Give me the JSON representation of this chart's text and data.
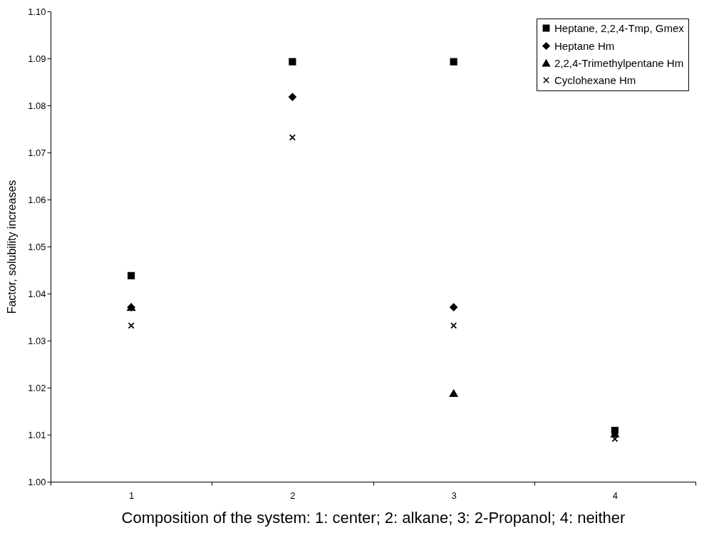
{
  "chart_data": {
    "type": "scatter",
    "xlabel": "Composition of the system: 1: center; 2: alkane; 3: 2-Propanol; 4: neither",
    "ylabel": "Factor, solubility increases",
    "categories": [
      "1",
      "2",
      "3",
      "4"
    ],
    "ylim": [
      1.0,
      1.1
    ],
    "yticks": [
      {
        "value": 1.0,
        "label": "1.00"
      },
      {
        "value": 1.01,
        "label": "1.01"
      },
      {
        "value": 1.02,
        "label": "1.02"
      },
      {
        "value": 1.03,
        "label": "1.03"
      },
      {
        "value": 1.04,
        "label": "1.04"
      },
      {
        "value": 1.05,
        "label": "1.05"
      },
      {
        "value": 1.06,
        "label": "1.06"
      },
      {
        "value": 1.07,
        "label": "1.07"
      },
      {
        "value": 1.08,
        "label": "1.08"
      },
      {
        "value": 1.09,
        "label": "1.09"
      },
      {
        "value": 1.1,
        "label": "1.10"
      }
    ],
    "grid": false,
    "legend": "top right",
    "series": [
      {
        "name": "Heptane, 2,2,4-Tmp, Gmex",
        "color": "#000000",
        "marker": "square",
        "values": [
          1.0438,
          1.0893,
          1.0893,
          1.0109
        ]
      },
      {
        "name": "Heptane Hm",
        "color": "#000000",
        "marker": "diamond",
        "values": [
          1.0371,
          1.0818,
          1.0371,
          null
        ]
      },
      {
        "name": "2,2,4-Trimethylpentane Hm",
        "color": "#000000",
        "marker": "triangle",
        "values": [
          1.0371,
          null,
          1.0188,
          1.0102
        ]
      },
      {
        "name": "Cyclohexane Hm",
        "color": "#000000",
        "marker": "cross",
        "values": [
          1.0332,
          1.0732,
          1.0332,
          1.0091
        ]
      }
    ]
  }
}
